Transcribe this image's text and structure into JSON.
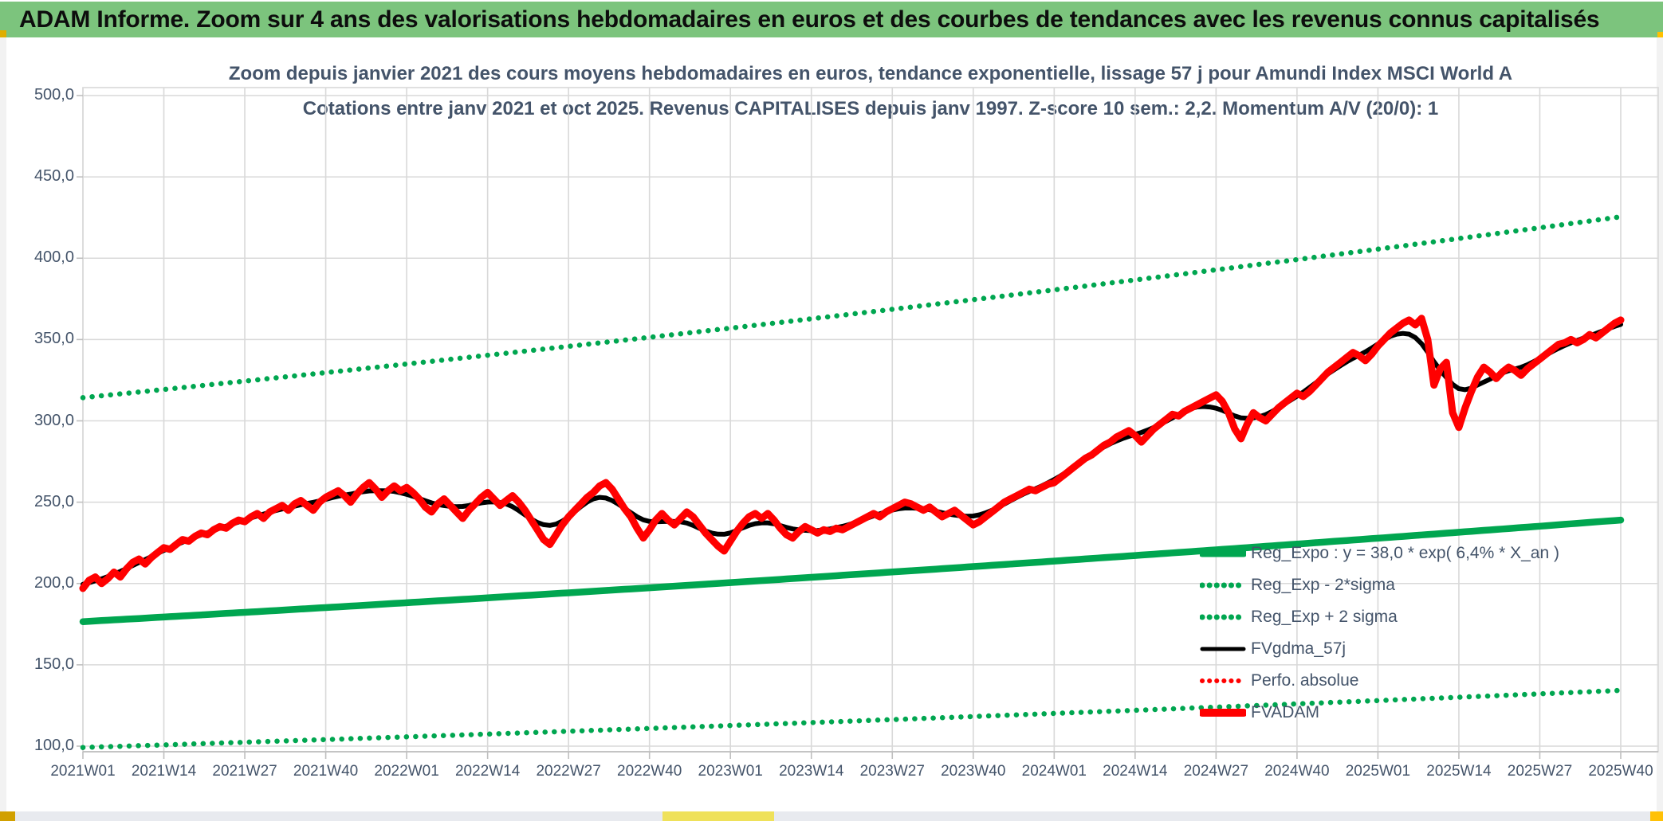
{
  "banner": {
    "title": "ADAM Informe. Zoom sur 4 ans des valorisations hebdomadaires en euros et des courbes de tendances avec les revenus connus capitalisés"
  },
  "colors": {
    "banner_green": "#7cc47d",
    "series_green": "#00a650",
    "series_red": "#ff0000",
    "series_black": "#000000",
    "text_slate": "#44546a",
    "gridline": "#d9d9d9",
    "accent_gold": "#d1a000",
    "accent_yellow": "#efe15a",
    "accent_orange": "#ffc000"
  },
  "chart_data": {
    "type": "line",
    "title_line1": "Zoom depuis janvier 2021 des cours moyens hebdomadaires en euros, tendance exponentielle, lissage 57 j pour Amundi Index MSCI World A",
    "title_line2": "Cotations entre janv 2021 et oct 2025. Revenus CAPITALISES depuis janv 1997. Z-score 10 sem.: 2,2. Momentum A/V (20/0): 1",
    "ylim": [
      100,
      500
    ],
    "y_tick_labels": [
      "500,0",
      "450,0",
      "400,0",
      "350,0",
      "300,0",
      "250,0",
      "200,0",
      "150,0",
      "100,0"
    ],
    "y_tick_values": [
      500,
      450,
      400,
      350,
      300,
      250,
      200,
      150,
      100
    ],
    "x_tick_labels": [
      "2021W01",
      "2021W14",
      "2021W27",
      "2021W40",
      "2022W01",
      "2022W14",
      "2022W27",
      "2022W40",
      "2023W01",
      "2023W14",
      "2023W27",
      "2023W40",
      "2024W01",
      "2024W14",
      "2024W27",
      "2024W40",
      "2025W01",
      "2025W14",
      "2025W27",
      "2025W40"
    ],
    "weeks_per_tick": 13,
    "n_points": 248,
    "grid": true,
    "legend_position": "inside-bottom-right",
    "regression": {
      "formula_text": "y = 38,0 * exp( 6,4% * X_an )",
      "a": 38.0,
      "rate_pct": 6.4,
      "origin_label": "janv 1997",
      "start_year_offset": 24.0,
      "band_factor_2sigma": 1.78
    },
    "series": [
      {
        "name": "Reg_Expo : y = 38,0 * exp( 6,4% * X_an )",
        "kind": "regression-center",
        "color": "#00a650",
        "style": "solid",
        "width": 8.5
      },
      {
        "name": "Reg_Exp - 2*sigma",
        "kind": "regression-lower",
        "color": "#00a650",
        "style": "dotted",
        "width": 6.5
      },
      {
        "name": "Reg_Exp + 2 sigma",
        "kind": "regression-upper",
        "color": "#00a650",
        "style": "dotted",
        "width": 6.5
      },
      {
        "name": "FVgdma_57j",
        "kind": "smoothed-of-fvadam",
        "color": "#000000",
        "style": "solid",
        "width": 6
      },
      {
        "name": "Perfo. absolue",
        "kind": "same-as-fvadam",
        "color": "#ff0000",
        "style": "dotted",
        "width": 6
      },
      {
        "name": "FVADAM",
        "kind": "values",
        "color": "#ff0000",
        "style": "solid",
        "width": 9,
        "values": [
          197,
          202,
          204,
          200,
          203,
          207,
          204,
          209,
          213,
          215,
          212,
          216,
          219,
          222,
          221,
          224,
          227,
          226,
          229,
          231,
          230,
          233,
          235,
          234,
          237,
          239,
          238,
          241,
          243,
          240,
          244,
          246,
          248,
          245,
          249,
          251,
          248,
          245,
          250,
          253,
          255,
          257,
          254,
          250,
          255,
          259,
          262,
          258,
          253,
          257,
          260,
          257,
          259,
          256,
          252,
          247,
          244,
          249,
          252,
          248,
          244,
          240,
          245,
          249,
          253,
          256,
          252,
          248,
          251,
          254,
          250,
          245,
          239,
          233,
          227,
          224,
          230,
          236,
          241,
          245,
          249,
          253,
          256,
          260,
          262,
          258,
          252,
          246,
          241,
          234,
          228,
          233,
          239,
          243,
          239,
          236,
          240,
          244,
          241,
          236,
          231,
          227,
          223,
          220,
          226,
          232,
          237,
          241,
          243,
          240,
          243,
          239,
          234,
          230,
          228,
          232,
          235,
          233,
          231,
          233,
          232,
          234,
          233,
          235,
          237,
          239,
          241,
          243,
          241,
          244,
          246,
          248,
          250,
          249,
          247,
          245,
          247,
          244,
          241,
          243,
          245,
          242,
          239,
          236,
          238,
          241,
          244,
          247,
          250,
          252,
          254,
          256,
          258,
          257,
          259,
          261,
          262,
          265,
          268,
          271,
          274,
          277,
          279,
          282,
          285,
          287,
          290,
          292,
          294,
          291,
          287,
          291,
          295,
          298,
          301,
          304,
          303,
          306,
          308,
          310,
          312,
          314,
          316,
          312,
          305,
          295,
          289,
          298,
          305,
          302,
          300,
          304,
          308,
          311,
          314,
          317,
          315,
          318,
          322,
          326,
          330,
          333,
          336,
          339,
          342,
          340,
          337,
          341,
          346,
          350,
          354,
          357,
          360,
          362,
          359,
          363,
          350,
          322,
          332,
          336,
          305,
          296,
          308,
          318,
          327,
          333,
          330,
          326,
          330,
          333,
          331,
          328,
          332,
          335,
          338,
          341,
          344,
          347,
          348,
          350,
          348,
          350,
          353,
          351,
          354,
          357,
          360,
          362
        ]
      }
    ],
    "legend": [
      {
        "label": "Reg_Expo : y = 38,0 * exp( 6,4% * X_an )",
        "color": "#00a650",
        "style": "solid",
        "thickness": 9
      },
      {
        "label": "Reg_Exp - 2*sigma",
        "color": "#00a650",
        "style": "dotted",
        "thickness": 7
      },
      {
        "label": "Reg_Exp + 2 sigma",
        "color": "#00a650",
        "style": "dotted",
        "thickness": 7
      },
      {
        "label": "FVgdma_57j",
        "color": "#000000",
        "style": "solid",
        "thickness": 5
      },
      {
        "label": "Perfo. absolue",
        "color": "#ff0000",
        "style": "dotted",
        "thickness": 6
      },
      {
        "label": "FVADAM",
        "color": "#ff0000",
        "style": "solid",
        "thickness": 10
      }
    ]
  }
}
